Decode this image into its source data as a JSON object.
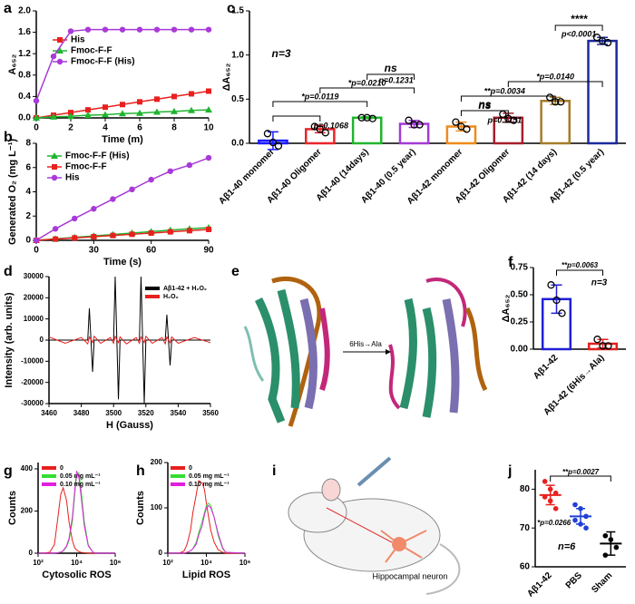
{
  "panel_labels": [
    "a",
    "b",
    "c",
    "d",
    "e",
    "f",
    "g",
    "h",
    "i",
    "j"
  ],
  "illustrations": {
    "e_label": "6His→Ala",
    "i_label": "Hippocampal neuron"
  },
  "chart_data": [
    {
      "type": "line",
      "x_label": "Time (m)",
      "y_label": "A₆₅₂",
      "x": [
        0,
        1,
        2,
        3,
        4,
        5,
        6,
        7,
        8,
        9,
        10
      ],
      "xlim": [
        0,
        10
      ],
      "xticks": [
        0,
        2,
        4,
        6,
        8,
        10
      ],
      "ylim": [
        0,
        2
      ],
      "yticks": [
        {
          "value": 0,
          "label": "0.0"
        },
        0.4,
        0.8,
        1.2,
        1.6,
        {
          "value": 2,
          "label": "2.0"
        }
      ],
      "legend": "center left",
      "series": [
        {
          "name": "His",
          "color": "#e8201e",
          "marker": "square",
          "values": [
            0,
            0.05,
            0.1,
            0.15,
            0.2,
            0.25,
            0.3,
            0.35,
            0.4,
            0.45,
            0.5
          ]
        },
        {
          "name": "Fmoc-F-F",
          "color": "#1fb52f",
          "marker": "triangle",
          "values": [
            0,
            0.02,
            0.03,
            0.05,
            0.06,
            0.08,
            0.09,
            0.11,
            0.12,
            0.14,
            0.15
          ]
        },
        {
          "name": "Fmoc-F-F (His)",
          "color": "#a83ad8",
          "marker": "circle",
          "values": [
            0.32,
            1.15,
            1.62,
            1.65,
            1.65,
            1.65,
            1.65,
            1.65,
            1.65,
            1.65,
            1.65
          ]
        }
      ]
    },
    {
      "type": "line",
      "x_label": "Time (s)",
      "y_label": "Generated O₂ (mg L⁻¹)",
      "x": [
        0,
        10,
        20,
        30,
        40,
        50,
        60,
        70,
        80,
        90
      ],
      "xlim": [
        0,
        90
      ],
      "xticks": [
        0,
        30,
        60,
        90
      ],
      "ylim": [
        0,
        8
      ],
      "yticks": [
        0,
        2,
        4,
        6,
        8
      ],
      "legend": "upper left",
      "series": [
        {
          "name": "Fmoc-F-F (His)",
          "color": "#1fb52f",
          "marker": "triangle",
          "values": [
            0,
            0.12,
            0.24,
            0.36,
            0.48,
            0.6,
            0.72,
            0.84,
            0.95,
            1.05
          ]
        },
        {
          "name": "Fmoc-F-F",
          "color": "#e8201e",
          "marker": "square",
          "values": [
            0,
            0.1,
            0.2,
            0.3,
            0.4,
            0.5,
            0.6,
            0.7,
            0.8,
            0.9
          ]
        },
        {
          "name": "His",
          "color": "#a83ad8",
          "marker": "circle",
          "values": [
            0,
            0.95,
            1.8,
            2.6,
            3.4,
            4.2,
            5.0,
            5.7,
            6.2,
            6.8
          ]
        }
      ]
    },
    {
      "type": "bar",
      "y_label": "ΔA₆₅₂",
      "categories": [
        "Aβ1-40 monomer",
        "Aβ1-40 Oligomer",
        "Aβ1-40 (14days)",
        "Aβ1-40 (0.5 year)",
        "Aβ1-42 monomer",
        "Aβ1-42 Oligomer",
        "Aβ1-42 (14 days)",
        "Aβ1-42 (0.5 year)"
      ],
      "values": [
        0.03,
        0.16,
        0.29,
        0.22,
        0.19,
        0.29,
        0.48,
        1.16
      ],
      "errors": [
        0.1,
        0.04,
        0.01,
        0.04,
        0.05,
        0.05,
        0.04,
        0.04
      ],
      "points": [
        [
          0.11,
          0.01,
          -0.03
        ],
        [
          0.19,
          0.16,
          0.12
        ],
        [
          0.29,
          0.29,
          0.28
        ],
        [
          0.26,
          0.21,
          0.21
        ],
        [
          0.24,
          0.19,
          0.16
        ],
        [
          0.33,
          0.28,
          0.26
        ],
        [
          0.52,
          0.47,
          0.47
        ],
        [
          1.2,
          1.16,
          1.14
        ]
      ],
      "colors": [
        "#1a1aff",
        "#e8252a",
        "#1fb52f",
        "#a23bd6",
        "#f08a1a",
        "#a61e2b",
        "#a67c2a",
        "#1a2a9c"
      ],
      "ylim": [
        0,
        1.5
      ],
      "yticks": [
        {
          "value": 0,
          "label": "0.0"
        },
        0.5,
        {
          "value": 1,
          "label": "1.0"
        },
        1.5
      ],
      "annotations": [
        "n=3",
        "*p=0.0119",
        "*p=0.0210",
        "ns",
        "p=0.1068",
        "ns",
        "p=0.1231",
        "**p=0.0034",
        "ns",
        "p=0.1151",
        "*p=0.0140",
        "****",
        "p<0.0001"
      ]
    },
    {
      "type": "line",
      "x_label": "H (Gauss)",
      "y_label": "Intensity (arb. units)",
      "x": [
        3460,
        3470,
        3480,
        3484,
        3485,
        3487,
        3488,
        3492,
        3498,
        3500,
        3501,
        3503,
        3504,
        3508,
        3514,
        3516,
        3517,
        3519,
        3520,
        3524,
        3530,
        3532,
        3533,
        3535,
        3536,
        3540,
        3550,
        3560
      ],
      "xlim": [
        3460,
        3560
      ],
      "xticks": [
        3460,
        3480,
        3500,
        3520,
        3540,
        3560
      ],
      "ylim": [
        -30000,
        30000
      ],
      "yticks": [
        -30000,
        -20000,
        -10000,
        0,
        10000,
        20000,
        30000
      ],
      "legend": "upper right",
      "series": [
        {
          "name": "Aβ1-42 + H₂O₂",
          "color": "#000000",
          "values": [
            0,
            0,
            0,
            0,
            15000,
            -15000,
            0,
            0,
            0,
            0,
            30000,
            -28000,
            0,
            0,
            0,
            0,
            30000,
            -30000,
            0,
            0,
            0,
            0,
            12000,
            -12000,
            0,
            0,
            0,
            0
          ]
        },
        {
          "name": "H₂O₂",
          "color": "#e8201e",
          "values": [
            1500,
            -1500,
            1200,
            -1800,
            1500,
            -1200,
            1800,
            -1500,
            1200,
            -1500,
            1800,
            -1200,
            1500,
            -1800,
            1200,
            -1500,
            1500,
            -1200,
            1800,
            -1500,
            1200,
            -1800,
            1500,
            -1200,
            1500,
            -1500,
            1200,
            -1200
          ]
        }
      ]
    },
    {
      "type": "bar",
      "y_label": "ΔA₆₅₂",
      "categories": [
        "Aβ1-42",
        "Aβ1-42 (6His→Ala)"
      ],
      "values": [
        0.46,
        0.05
      ],
      "errors": [
        0.13,
        0.04
      ],
      "points": [
        [
          0.59,
          0.45,
          0.33
        ],
        [
          0.09,
          0.03,
          0.03
        ]
      ],
      "colors": [
        "#1f1fd6",
        "#e02020"
      ],
      "ylim": [
        0,
        0.75
      ],
      "yticks": [
        {
          "value": 0,
          "label": "0.00"
        },
        0.25,
        {
          "value": 0.5,
          "label": "0.50"
        },
        0.75
      ],
      "annotations": [
        "**p=0.0063",
        "n=3"
      ]
    },
    {
      "type": "line",
      "x_label": "Cytosolic ROS",
      "y_label": "Counts",
      "x_log": true,
      "x": [
        100,
        200,
        400,
        700,
        1000,
        1500,
        2000,
        3000,
        4000,
        6000,
        8000,
        10000,
        13000,
        17000,
        25000,
        40000,
        70000,
        100000,
        1000000
      ],
      "xlim": [
        100,
        1000000
      ],
      "xticks": [
        {
          "value": 100,
          "label": "10²"
        },
        {
          "value": 10000,
          "label": "10⁴"
        },
        {
          "value": 1000000,
          "label": "10⁶"
        }
      ],
      "ylim": [
        0,
        430
      ],
      "yticks": [
        0,
        200,
        400
      ],
      "legend": "upper left",
      "series": [
        {
          "name": "0",
          "color": "#e8201e",
          "values": [
            0,
            0,
            5,
            40,
            150,
            280,
            310,
            250,
            150,
            60,
            25,
            15,
            8,
            4,
            2,
            0,
            0,
            0,
            0
          ]
        },
        {
          "name": "0.05 mg mL⁻¹",
          "color": "#33dd33",
          "values": [
            0,
            0,
            0,
            0,
            2,
            5,
            10,
            30,
            60,
            150,
            280,
            370,
            380,
            300,
            150,
            40,
            5,
            0,
            0
          ]
        },
        {
          "name": "0.10 mg mL⁻¹",
          "color": "#e020e0",
          "values": [
            0,
            0,
            0,
            0,
            2,
            5,
            12,
            35,
            70,
            170,
            300,
            390,
            360,
            270,
            130,
            35,
            5,
            0,
            0
          ]
        }
      ]
    },
    {
      "type": "line",
      "x_label": "Lipid ROS",
      "y_label": "Counts",
      "x_log": true,
      "x": [
        100,
        200,
        400,
        700,
        1000,
        1500,
        2000,
        3000,
        4000,
        6000,
        8000,
        10000,
        13000,
        17000,
        25000,
        40000,
        70000,
        100000,
        1000000
      ],
      "xlim": [
        100,
        1000000
      ],
      "xticks": [
        {
          "value": 100,
          "label": "10²"
        },
        {
          "value": 10000,
          "label": "10⁴"
        },
        {
          "value": 1000000,
          "label": "10⁶"
        }
      ],
      "ylim": [
        0,
        200
      ],
      "yticks": [
        0,
        100,
        200
      ],
      "legend": "upper left",
      "series": [
        {
          "name": "0",
          "color": "#e8201e",
          "values": [
            0,
            0,
            0,
            5,
            20,
            50,
            90,
            130,
            160,
            155,
            140,
            110,
            80,
            50,
            25,
            8,
            2,
            0,
            0
          ]
        },
        {
          "name": "0.05 mg mL⁻¹",
          "color": "#33dd33",
          "values": [
            0,
            0,
            0,
            0,
            2,
            5,
            10,
            25,
            45,
            70,
            90,
            105,
            110,
            105,
            80,
            40,
            10,
            2,
            0
          ]
        },
        {
          "name": "0.10 mg mL⁻¹",
          "color": "#e020e0",
          "values": [
            0,
            0,
            0,
            0,
            2,
            5,
            10,
            20,
            40,
            60,
            85,
            100,
            105,
            100,
            80,
            45,
            12,
            2,
            0
          ]
        }
      ]
    },
    {
      "type": "dot",
      "categories": [
        "Aβ1-42",
        "PBS",
        "Sham"
      ],
      "values": [
        78.5,
        73,
        66
      ],
      "errors": [
        2.5,
        2,
        3
      ],
      "points": [
        [
          82,
          80,
          79,
          78,
          77,
          75
        ],
        [
          76,
          75,
          73,
          72,
          71,
          70
        ],
        [
          68,
          67,
          65,
          63
        ]
      ],
      "colors": [
        "#e8201e",
        "#1f3fd6",
        "#000000"
      ],
      "ylim": [
        60,
        85
      ],
      "yticks": [
        60,
        70,
        80
      ],
      "annotations": [
        "**p=0.0027",
        "*p=0.0266",
        "n=6"
      ]
    }
  ]
}
